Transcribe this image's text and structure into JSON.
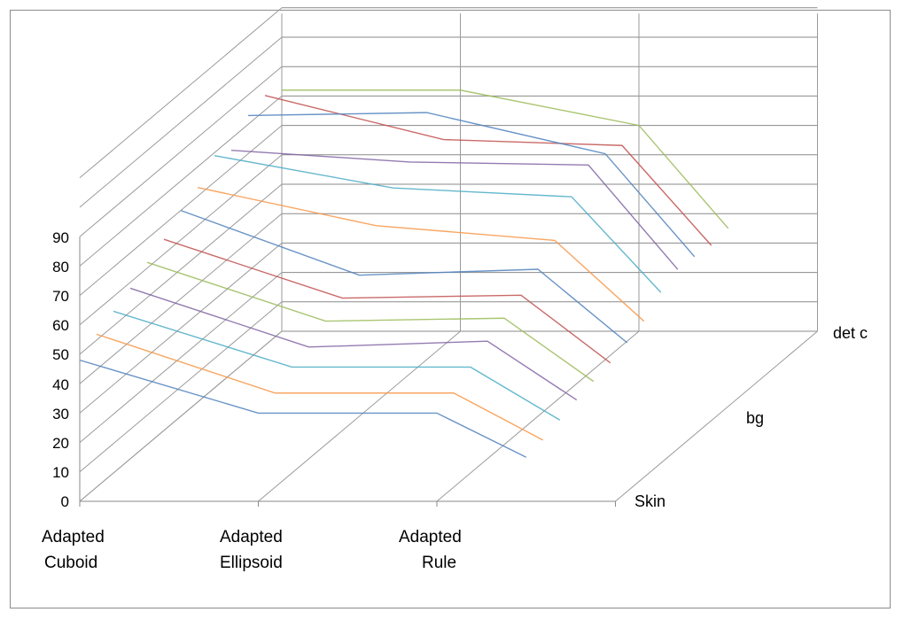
{
  "chart_data": {
    "type": "line",
    "subtype": "3d-line",
    "title": "",
    "y_ticks": [
      "0",
      "10",
      "20",
      "30",
      "40",
      "50",
      "60",
      "70",
      "80",
      "90"
    ],
    "ylim": [
      0,
      90
    ],
    "categories": [
      "Adapted Cuboid",
      "Adapted Ellipsoid",
      "Adapted Rule"
    ],
    "series_depth_labels": [
      "Skin",
      "bg",
      "det c"
    ],
    "grid": true,
    "legend": "none",
    "series": [
      {
        "values": [
          82,
          82,
          70
        ],
        "color": "#9bbb59"
      },
      {
        "values": [
          85,
          70,
          68
        ],
        "color": "#c0504d"
      },
      {
        "values": [
          83,
          84,
          70
        ],
        "color": "#4f81bd"
      },
      {
        "values": [
          76,
          72,
          71
        ],
        "color": "#8064a2"
      },
      {
        "values": [
          79,
          68,
          65
        ],
        "color": "#4bacc6"
      },
      {
        "values": [
          73,
          60,
          55
        ],
        "color": "#f79646"
      },
      {
        "values": [
          70,
          48,
          50
        ],
        "color": "#4f81bd"
      },
      {
        "values": [
          65,
          45,
          46
        ],
        "color": "#c0504d"
      },
      {
        "values": [
          62,
          42,
          43
        ],
        "color": "#9bbb59"
      },
      {
        "values": [
          58,
          38,
          40
        ],
        "color": "#8064a2"
      },
      {
        "values": [
          55,
          36,
          36
        ],
        "color": "#4bacc6"
      },
      {
        "values": [
          52,
          32,
          32
        ],
        "color": "#f79646"
      },
      {
        "values": [
          48,
          30,
          30
        ],
        "color": "#4f81bd"
      }
    ]
  }
}
